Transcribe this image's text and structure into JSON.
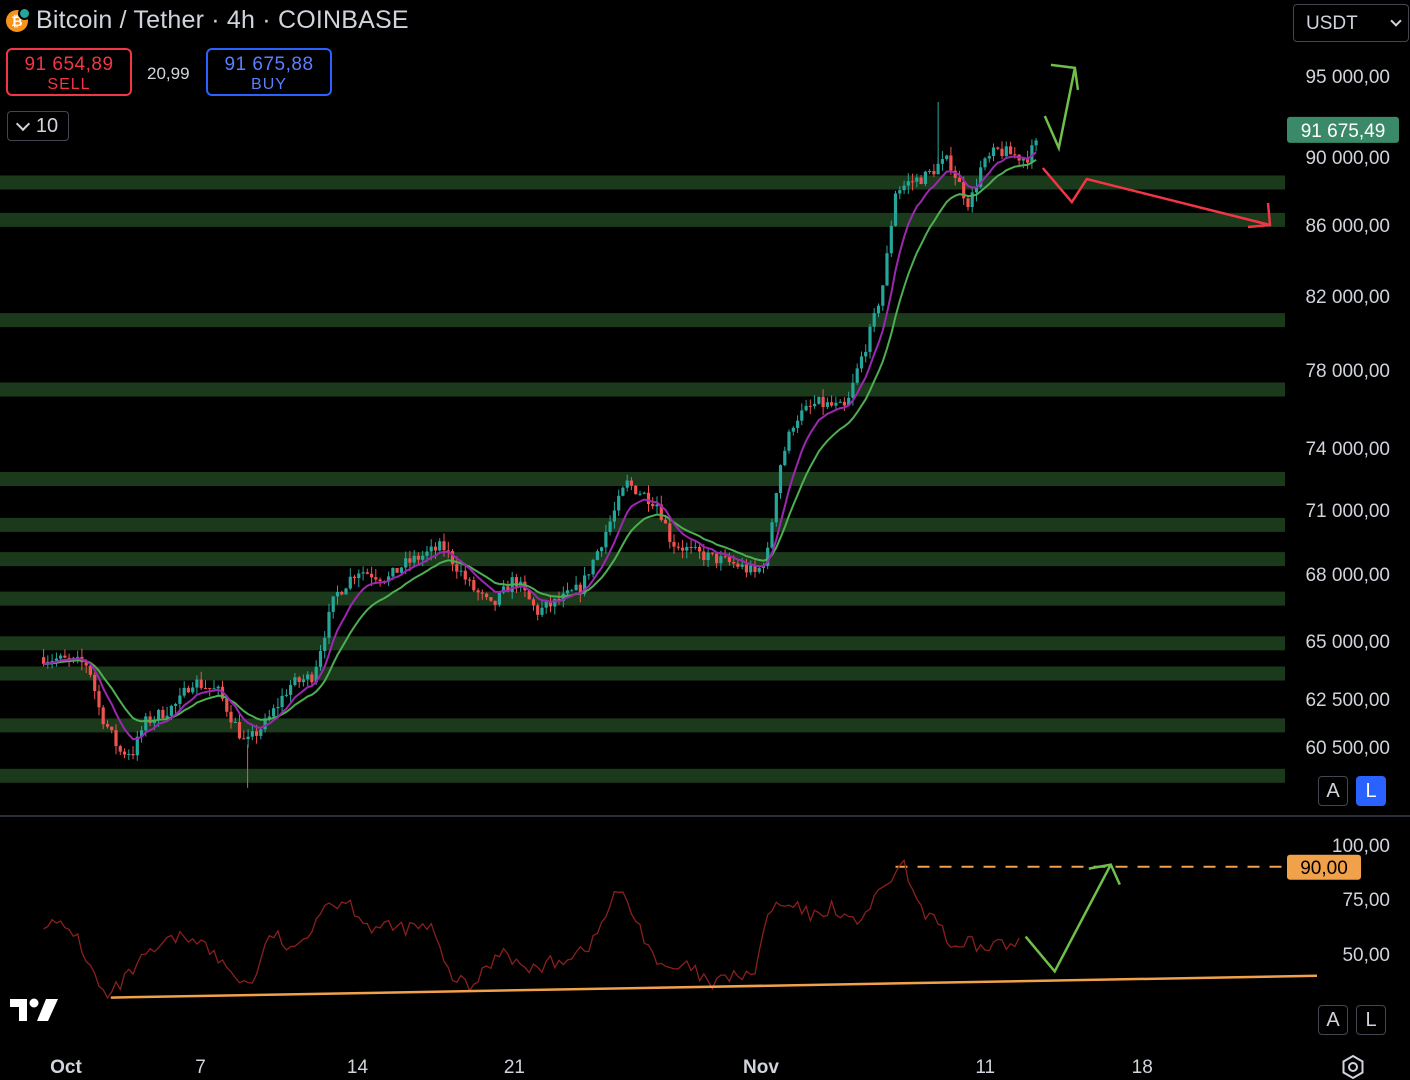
{
  "header": {
    "symbol": "Bitcoin / Tether · 4h · COINBASE",
    "coin_glyph": "₿",
    "sell_price": "91 654,89",
    "sell_label": "SELL",
    "spread": "20,99",
    "buy_price": "91 675,88",
    "buy_label": "BUY",
    "indicator_count": "10",
    "currency": "USDT"
  },
  "scale_buttons": {
    "auto": "A",
    "log": "L"
  },
  "colors": {
    "background": "#000000",
    "zones": "#1b3a1b",
    "candle_up": "#26a69a",
    "candle_down": "#ef5350",
    "ema_fast": "#9c27b0",
    "ema_slow": "#4caf50",
    "rsi": "#8b1f1f",
    "rsi_trendline": "#f0a14a",
    "up_arrow": "#6fbf4a",
    "down_arrow": "#f23645",
    "last_price_badge": "#3a8a6a",
    "rsi_badge": "#f0a14a"
  },
  "chart_data": [
    {
      "type": "candlestick",
      "title": "Bitcoin / Tether · 4h · COINBASE",
      "xlabel": "",
      "ylabel": "",
      "x_ticks": [
        "Oct",
        "7",
        "14",
        "21",
        "Nov",
        "11",
        "18"
      ],
      "y_ticks": [
        "95 000,00",
        "90 000,00",
        "86 000,00",
        "82 000,00",
        "78 000,00",
        "74 000,00",
        "71 000,00",
        "68 000,00",
        "65 000,00",
        "62 500,00",
        "60 500,00"
      ],
      "last_price": "91 675,49",
      "x_range_days": [
        -1,
        23.3
      ],
      "price_path_anchors": [
        [
          -1.0,
          64300
        ],
        [
          1.0,
          64000
        ],
        [
          1.5,
          62000
        ],
        [
          2.4,
          60300
        ],
        [
          3.0,
          60300
        ],
        [
          3.5,
          61500
        ],
        [
          5.0,
          62300
        ],
        [
          5.6,
          63300
        ],
        [
          6.8,
          62800
        ],
        [
          8.0,
          60600
        ],
        [
          9.0,
          61600
        ],
        [
          10.0,
          63100
        ],
        [
          11.0,
          63500
        ],
        [
          12.0,
          67000
        ],
        [
          13.0,
          68200
        ],
        [
          14.4,
          67800
        ],
        [
          15.0,
          68400
        ],
        [
          16.0,
          68900
        ],
        [
          16.8,
          69300
        ],
        [
          18.0,
          67500
        ],
        [
          19.0,
          66500
        ],
        [
          20.0,
          67800
        ],
        [
          21.0,
          66300
        ],
        [
          22.0,
          66800
        ],
        [
          23.0,
          67400
        ],
        [
          24.5,
          71000
        ],
        [
          25.0,
          72300
        ],
        [
          26.0,
          71600
        ],
        [
          26.4,
          71300
        ],
        [
          27.0,
          69500
        ],
        [
          28.0,
          69000
        ],
        [
          29.0,
          68700
        ],
        [
          30.0,
          68400
        ],
        [
          30.8,
          68000
        ],
        [
          31.3,
          69000
        ],
        [
          31.8,
          73000
        ],
        [
          32.5,
          75500
        ],
        [
          33.5,
          76300
        ],
        [
          34.8,
          76000
        ],
        [
          35.3,
          78000
        ],
        [
          36.0,
          80500
        ],
        [
          36.5,
          83000
        ],
        [
          37.0,
          88000
        ],
        [
          37.6,
          88500
        ],
        [
          38.4,
          88900
        ],
        [
          38.9,
          89500
        ],
        [
          39.4,
          89800
        ],
        [
          39.8,
          88500
        ],
        [
          40.3,
          87200
        ],
        [
          40.8,
          89300
        ],
        [
          41.5,
          90400
        ],
        [
          42.1,
          90200
        ],
        [
          42.8,
          89900
        ],
        [
          43.3,
          90800
        ]
      ],
      "price_range_points": [
        {
          "label": "October low",
          "y": 58800
        },
        {
          "label": "November high",
          "y": 93400
        }
      ],
      "horizontal_zones": [
        88500,
        86300,
        80700,
        77000,
        72500,
        70300,
        68700,
        66900,
        64900,
        63600,
        61400,
        59300
      ],
      "series": [
        {
          "name": "",
          "kind": "EMA fast",
          "color": "#9c27b0"
        },
        {
          "name": "",
          "kind": "EMA slow",
          "color": "#4caf50"
        }
      ],
      "projection": {
        "up_target": 95500,
        "down_target": 86000
      }
    },
    {
      "type": "line",
      "title": "",
      "y_ticks": [
        "100,00",
        "75,00",
        "50,00"
      ],
      "badge_value": "90,00",
      "ylim": [
        24,
        101
      ],
      "rsi_anchors": [
        [
          -1.0,
          65
        ],
        [
          0.4,
          60
        ],
        [
          1.2,
          41
        ],
        [
          1.8,
          29
        ],
        [
          2.6,
          38
        ],
        [
          3.5,
          48
        ],
        [
          4.8,
          57
        ],
        [
          5.8,
          58
        ],
        [
          7.0,
          45
        ],
        [
          8.2,
          35
        ],
        [
          9.2,
          60
        ],
        [
          10.2,
          50
        ],
        [
          11.5,
          73
        ],
        [
          12.6,
          74
        ],
        [
          13.6,
          62
        ],
        [
          15.0,
          62
        ],
        [
          16.3,
          62
        ],
        [
          17.0,
          42
        ],
        [
          18.0,
          34
        ],
        [
          19.5,
          53
        ],
        [
          20.5,
          42
        ],
        [
          22.0,
          47
        ],
        [
          23.5,
          55
        ],
        [
          24.6,
          80
        ],
        [
          25.3,
          68
        ],
        [
          26.6,
          42
        ],
        [
          27.8,
          44
        ],
        [
          28.8,
          35
        ],
        [
          29.8,
          41
        ],
        [
          30.6,
          38
        ],
        [
          31.4,
          71
        ],
        [
          32.3,
          72
        ],
        [
          33.4,
          67
        ],
        [
          34.2,
          72
        ],
        [
          35.1,
          64
        ],
        [
          36.0,
          73
        ],
        [
          36.8,
          85
        ],
        [
          37.4,
          90
        ],
        [
          38.1,
          69
        ],
        [
          38.8,
          68
        ],
        [
          39.6,
          50
        ],
        [
          40.3,
          55
        ],
        [
          40.9,
          52
        ],
        [
          41.5,
          56
        ],
        [
          42.2,
          52
        ],
        [
          42.6,
          58
        ]
      ],
      "rsi_trendline": [
        [
          -1.6,
          30
        ],
        [
          23.4,
          40
        ]
      ],
      "resistance_level": 90,
      "projection": {
        "dip": 42,
        "target": 91
      }
    }
  ]
}
